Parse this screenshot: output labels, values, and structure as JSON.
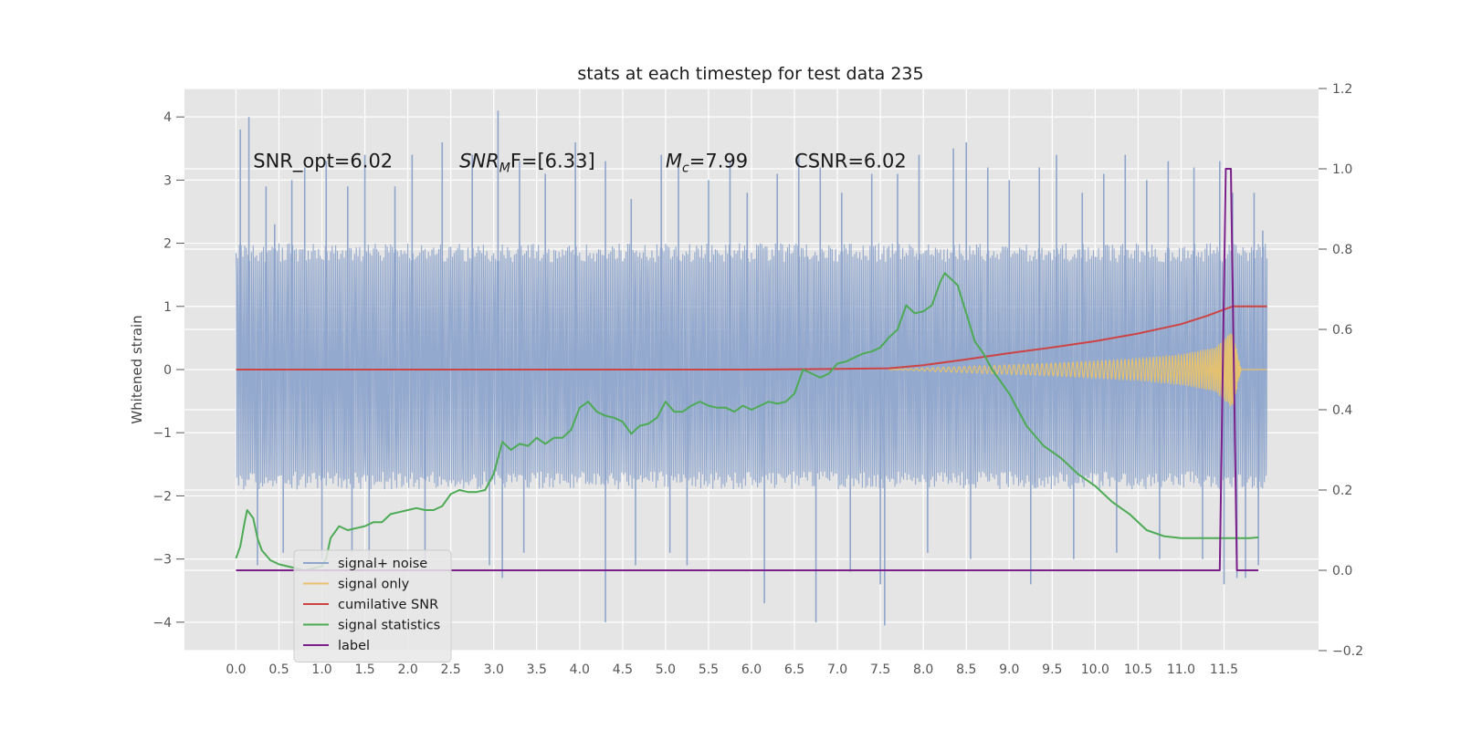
{
  "chart_data": {
    "type": "line",
    "title": "stats at each timestep for test data 235",
    "ylabel": "Whitened strain",
    "xlabel": "",
    "xlim": [
      -0.6,
      12.6
    ],
    "ylim": [
      -4.45,
      4.45
    ],
    "y2lim": [
      -0.2,
      1.2
    ],
    "grid": true,
    "x_ticks": [
      0.0,
      0.5,
      1.0,
      1.5,
      2.0,
      2.5,
      3.0,
      3.5,
      4.0,
      4.5,
      5.0,
      5.5,
      6.0,
      6.5,
      7.0,
      7.5,
      8.0,
      8.5,
      9.0,
      9.5,
      10.0,
      10.5,
      11.0,
      11.5
    ],
    "x_tick_labels": [
      "0.0",
      "0.5",
      "1.0",
      "1.5",
      "2.0",
      "2.5",
      "3.0",
      "3.5",
      "4.0",
      "4.5",
      "5.0",
      "5.5",
      "6.0",
      "6.5",
      "7.0",
      "7.5",
      "8.0",
      "8.5",
      "9.0",
      "9.5",
      "10.0",
      "10.5",
      "11.0",
      "11.5"
    ],
    "y_ticks": [
      4,
      3,
      2,
      1,
      0,
      -1,
      -2,
      -3,
      -4
    ],
    "y_tick_labels": [
      "4",
      "3",
      "2",
      "1",
      "0",
      "−1",
      "−2",
      "−3",
      "−4"
    ],
    "y2_ticks": [
      1.2,
      1.0,
      0.8,
      0.6,
      0.4,
      0.2,
      0.0,
      -0.2
    ],
    "y2_tick_labels": [
      "1.2",
      "1.0",
      "0.8",
      "0.6",
      "0.4",
      "0.2",
      "0.0",
      "−0.2"
    ],
    "annotations": [
      {
        "text": "SNR_opt=6.02",
        "x": 0.2,
        "y": 3.3
      },
      {
        "text": "SNR_MF=[6.33]",
        "x": 2.6,
        "y": 3.3
      },
      {
        "text": "M_c=7.99",
        "x": 5.0,
        "y": 3.3
      },
      {
        "text": "CSNR=6.02",
        "x": 6.5,
        "y": 3.3
      }
    ],
    "series": [
      {
        "name": "signal+ noise",
        "axis": "left",
        "color": "#8fa5cc",
        "kind": "noise",
        "x_range": [
          0.0,
          12.0
        ],
        "envelope_upper": [
          [
            0.0,
            2.0
          ],
          [
            12.0,
            2.0
          ]
        ],
        "envelope_lower": [
          [
            0.0,
            -1.9
          ],
          [
            12.0,
            -1.9
          ]
        ],
        "extreme_spikes": [
          {
            "x": 0.05,
            "y": 3.8
          },
          {
            "x": 0.15,
            "y": 4.0
          },
          {
            "x": 0.35,
            "y": 2.9
          },
          {
            "x": 0.45,
            "y": 2.3
          },
          {
            "x": 0.65,
            "y": 3.0
          },
          {
            "x": 0.8,
            "y": 3.2
          },
          {
            "x": 1.05,
            "y": 3.3
          },
          {
            "x": 1.3,
            "y": 2.9
          },
          {
            "x": 1.5,
            "y": 3.4
          },
          {
            "x": 1.85,
            "y": 2.9
          },
          {
            "x": 2.05,
            "y": 3.4
          },
          {
            "x": 2.4,
            "y": 3.6
          },
          {
            "x": 2.75,
            "y": 3.4
          },
          {
            "x": 3.05,
            "y": 4.1
          },
          {
            "x": 3.3,
            "y": 3.3
          },
          {
            "x": 3.6,
            "y": 3.1
          },
          {
            "x": 3.95,
            "y": 3.6
          },
          {
            "x": 4.3,
            "y": 3.3
          },
          {
            "x": 4.6,
            "y": 2.7
          },
          {
            "x": 4.95,
            "y": 3.4
          },
          {
            "x": 5.15,
            "y": 3.2
          },
          {
            "x": 5.5,
            "y": 3.0
          },
          {
            "x": 5.75,
            "y": 3.3
          },
          {
            "x": 5.95,
            "y": 2.8
          },
          {
            "x": 6.3,
            "y": 3.1
          },
          {
            "x": 6.55,
            "y": 3.4
          },
          {
            "x": 6.8,
            "y": 3.2
          },
          {
            "x": 7.05,
            "y": 2.8
          },
          {
            "x": 7.4,
            "y": 3.1
          },
          {
            "x": 7.7,
            "y": 3.1
          },
          {
            "x": 7.95,
            "y": 3.4
          },
          {
            "x": 8.35,
            "y": 3.5
          },
          {
            "x": 8.5,
            "y": 3.6
          },
          {
            "x": 8.75,
            "y": 3.2
          },
          {
            "x": 9.0,
            "y": 3.0
          },
          {
            "x": 9.35,
            "y": 3.2
          },
          {
            "x": 9.55,
            "y": 3.4
          },
          {
            "x": 9.85,
            "y": 2.8
          },
          {
            "x": 10.1,
            "y": 3.1
          },
          {
            "x": 10.35,
            "y": 3.4
          },
          {
            "x": 10.6,
            "y": 3.0
          },
          {
            "x": 10.85,
            "y": 3.3
          },
          {
            "x": 11.15,
            "y": 3.2
          },
          {
            "x": 11.45,
            "y": 3.3
          },
          {
            "x": 11.6,
            "y": 2.8
          },
          {
            "x": 11.85,
            "y": 2.8
          },
          {
            "x": 11.95,
            "y": 2.2
          },
          {
            "x": 0.25,
            "y": -3.1
          },
          {
            "x": 0.55,
            "y": -2.9
          },
          {
            "x": 1.0,
            "y": -3.0
          },
          {
            "x": 1.35,
            "y": -2.9
          },
          {
            "x": 1.55,
            "y": -3.0
          },
          {
            "x": 2.2,
            "y": -3.0
          },
          {
            "x": 2.95,
            "y": -3.1
          },
          {
            "x": 3.1,
            "y": -3.3
          },
          {
            "x": 3.35,
            "y": -2.9
          },
          {
            "x": 4.3,
            "y": -4.0
          },
          {
            "x": 4.65,
            "y": -3.1
          },
          {
            "x": 5.05,
            "y": -2.9
          },
          {
            "x": 5.25,
            "y": -3.1
          },
          {
            "x": 6.15,
            "y": -3.7
          },
          {
            "x": 6.75,
            "y": -4.0
          },
          {
            "x": 7.15,
            "y": -3.2
          },
          {
            "x": 7.5,
            "y": -3.4
          },
          {
            "x": 7.55,
            "y": -4.05
          },
          {
            "x": 8.05,
            "y": -2.9
          },
          {
            "x": 8.55,
            "y": -3.0
          },
          {
            "x": 9.25,
            "y": -3.4
          },
          {
            "x": 9.75,
            "y": -3.0
          },
          {
            "x": 10.25,
            "y": -2.9
          },
          {
            "x": 10.75,
            "y": -3.0
          },
          {
            "x": 11.25,
            "y": -3.0
          },
          {
            "x": 11.5,
            "y": -3.4
          },
          {
            "x": 11.65,
            "y": -3.3
          },
          {
            "x": 11.75,
            "y": -3.3
          },
          {
            "x": 11.9,
            "y": -3.1
          }
        ]
      },
      {
        "name": "signal only",
        "axis": "left",
        "color": "#e8c26a",
        "kind": "chirp",
        "amplitude_envelope": [
          [
            7.6,
            0.0
          ],
          [
            8.5,
            0.05
          ],
          [
            9.5,
            0.1
          ],
          [
            10.5,
            0.17
          ],
          [
            11.0,
            0.24
          ],
          [
            11.4,
            0.35
          ],
          [
            11.6,
            0.62
          ],
          [
            11.7,
            0.0
          ],
          [
            12.0,
            0.0
          ]
        ]
      },
      {
        "name": "cumilative SNR",
        "axis": "left",
        "color": "#cc4444",
        "x": [
          0.0,
          6.0,
          7.0,
          7.6,
          8.0,
          8.5,
          9.0,
          9.5,
          10.0,
          10.5,
          11.0,
          11.3,
          11.5,
          11.6,
          11.7,
          12.0
        ],
        "y": [
          0.0,
          0.0,
          0.01,
          0.02,
          0.07,
          0.16,
          0.26,
          0.35,
          0.45,
          0.57,
          0.72,
          0.85,
          0.95,
          1.0,
          1.0,
          1.0
        ]
      },
      {
        "name": "signal statistics",
        "axis": "right",
        "color": "#4daa55",
        "x": [
          0.0,
          0.05,
          0.1,
          0.13,
          0.2,
          0.25,
          0.3,
          0.4,
          0.5,
          0.6,
          0.8,
          1.0,
          1.05,
          1.1,
          1.2,
          1.3,
          1.4,
          1.5,
          1.6,
          1.7,
          1.8,
          1.9,
          2.0,
          2.1,
          2.2,
          2.3,
          2.4,
          2.5,
          2.6,
          2.7,
          2.8,
          2.9,
          3.0,
          3.1,
          3.2,
          3.3,
          3.4,
          3.5,
          3.6,
          3.7,
          3.8,
          3.9,
          4.0,
          4.1,
          4.2,
          4.3,
          4.4,
          4.5,
          4.6,
          4.7,
          4.8,
          4.9,
          5.0,
          5.1,
          5.2,
          5.3,
          5.4,
          5.5,
          5.6,
          5.7,
          5.8,
          5.9,
          6.0,
          6.1,
          6.2,
          6.3,
          6.4,
          6.5,
          6.6,
          6.7,
          6.8,
          6.9,
          7.0,
          7.1,
          7.2,
          7.3,
          7.4,
          7.5,
          7.6,
          7.7,
          7.8,
          7.9,
          8.0,
          8.1,
          8.2,
          8.25,
          8.3,
          8.4,
          8.5,
          8.6,
          8.7,
          8.8,
          8.9,
          9.0,
          9.2,
          9.4,
          9.6,
          9.8,
          10.0,
          10.2,
          10.4,
          10.6,
          10.8,
          11.0,
          11.2,
          11.4,
          11.6,
          11.8,
          11.9
        ],
        "y": [
          0.03,
          0.06,
          0.12,
          0.15,
          0.13,
          0.08,
          0.05,
          0.025,
          0.015,
          0.01,
          0.0,
          0.01,
          0.03,
          0.08,
          0.11,
          0.1,
          0.105,
          0.11,
          0.12,
          0.12,
          0.14,
          0.145,
          0.15,
          0.155,
          0.15,
          0.15,
          0.16,
          0.19,
          0.2,
          0.195,
          0.195,
          0.2,
          0.24,
          0.32,
          0.3,
          0.315,
          0.31,
          0.33,
          0.315,
          0.33,
          0.33,
          0.35,
          0.405,
          0.42,
          0.395,
          0.385,
          0.38,
          0.37,
          0.34,
          0.36,
          0.365,
          0.38,
          0.42,
          0.395,
          0.395,
          0.41,
          0.42,
          0.41,
          0.405,
          0.405,
          0.395,
          0.41,
          0.4,
          0.41,
          0.42,
          0.415,
          0.42,
          0.44,
          0.5,
          0.49,
          0.48,
          0.49,
          0.515,
          0.52,
          0.53,
          0.54,
          0.545,
          0.555,
          0.58,
          0.6,
          0.66,
          0.64,
          0.645,
          0.66,
          0.72,
          0.74,
          0.73,
          0.71,
          0.64,
          0.57,
          0.54,
          0.5,
          0.47,
          0.44,
          0.36,
          0.31,
          0.28,
          0.24,
          0.21,
          0.17,
          0.14,
          0.1,
          0.085,
          0.08,
          0.08,
          0.08,
          0.08,
          0.08,
          0.082
        ]
      },
      {
        "name": "label",
        "axis": "right",
        "color": "#7b1f8a",
        "x": [
          0.0,
          11.45,
          11.52,
          11.58,
          11.65,
          11.72,
          11.9
        ],
        "y": [
          0.0,
          0.0,
          1.0,
          1.0,
          0.0,
          0.0,
          0.0
        ]
      }
    ],
    "legend": {
      "placement": "lower-left",
      "entries": [
        {
          "label": "signal+ noise",
          "color": "#8fa5cc"
        },
        {
          "label": "signal only",
          "color": "#e8c26a"
        },
        {
          "label": "cumilative SNR",
          "color": "#cc4444"
        },
        {
          "label": "signal statistics",
          "color": "#4daa55"
        },
        {
          "label": "label",
          "color": "#7b1f8a"
        }
      ]
    }
  }
}
